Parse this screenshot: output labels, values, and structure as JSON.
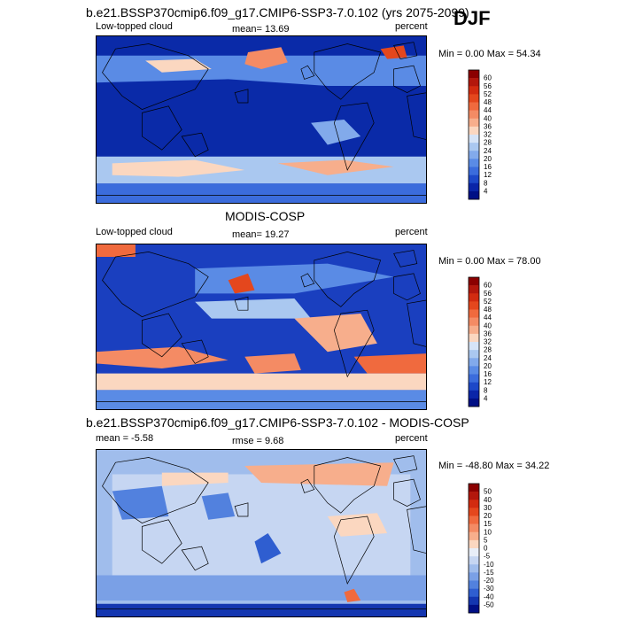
{
  "season": "DJF",
  "panels": [
    {
      "title": "b.e21.BSSP370cmip6.f09_g17.CMIP6-SSP3-7.0.102 (yrs 2075-2099)",
      "left_label": "Low-topped cloud",
      "center_label": "mean=  13.69",
      "right_label": "percent",
      "stats": "Min =   0.00 Max =  54.34"
    },
    {
      "title": "MODIS-COSP",
      "left_label": "Low-topped cloud",
      "center_label": "mean=  19.27",
      "right_label": "percent",
      "stats": "Min =   0.00 Max =  78.00"
    },
    {
      "title": "b.e21.BSSP370cmip6.f09_g17.CMIP6-SSP3-7.0.102 - MODIS-COSP",
      "left_label": "mean =  -5.58",
      "center_label": "rmse =   9.68",
      "right_label": "percent",
      "stats": "Min = -48.80 Max =  34.22"
    }
  ],
  "chart_data": [
    {
      "type": "heatmap",
      "title": "b.e21.BSSP370cmip6.f09_g17.CMIP6-SSP3-7.0.102 (yrs 2075-2099)",
      "variable": "Low-topped cloud",
      "units": "percent",
      "mean": 13.69,
      "min": 0.0,
      "max": 54.34,
      "colorbar": {
        "ticks": [
          60,
          56,
          52,
          48,
          44,
          40,
          36,
          32,
          28,
          24,
          20,
          16,
          12,
          8,
          4
        ],
        "colors": [
          "#8b0000",
          "#b3170c",
          "#d22b10",
          "#e4471d",
          "#f06a3e",
          "#f48b64",
          "#f7ae8c",
          "#fbd7c0",
          "#d6e4f7",
          "#aac8f0",
          "#82aaeb",
          "#5a8be5",
          "#3b6cdc",
          "#1d48c8",
          "#0a25a8",
          "#000f85"
        ]
      }
    },
    {
      "type": "heatmap",
      "title": "MODIS-COSP",
      "variable": "Low-topped cloud",
      "units": "percent",
      "mean": 19.27,
      "min": 0.0,
      "max": 78.0,
      "colorbar": {
        "ticks": [
          60,
          56,
          52,
          48,
          44,
          40,
          36,
          32,
          28,
          24,
          20,
          16,
          12,
          8,
          4
        ],
        "colors": [
          "#8b0000",
          "#b3170c",
          "#d22b10",
          "#e4471d",
          "#f06a3e",
          "#f48b64",
          "#f7ae8c",
          "#fbd7c0",
          "#d6e4f7",
          "#aac8f0",
          "#82aaeb",
          "#5a8be5",
          "#3b6cdc",
          "#1d48c8",
          "#0a25a8",
          "#000f85"
        ]
      }
    },
    {
      "type": "heatmap",
      "title": "b.e21.BSSP370cmip6.f09_g17.CMIP6-SSP3-7.0.102 - MODIS-COSP",
      "variable": "",
      "units": "percent",
      "mean": -5.58,
      "rmse": 9.68,
      "min": -48.8,
      "max": 34.22,
      "colorbar": {
        "ticks": [
          50,
          40,
          30,
          20,
          15,
          10,
          5,
          0,
          -5,
          -10,
          -15,
          -20,
          -30,
          -40,
          -50
        ],
        "colors": [
          "#8b0000",
          "#b3170c",
          "#d22b10",
          "#e4471d",
          "#f06a3e",
          "#f48b64",
          "#f7ae8c",
          "#fbd7c0",
          "#e8eef8",
          "#c6d6f2",
          "#a0bdec",
          "#7aa0e6",
          "#5281de",
          "#2f5ed0",
          "#1436b0",
          "#000f85"
        ]
      }
    }
  ]
}
